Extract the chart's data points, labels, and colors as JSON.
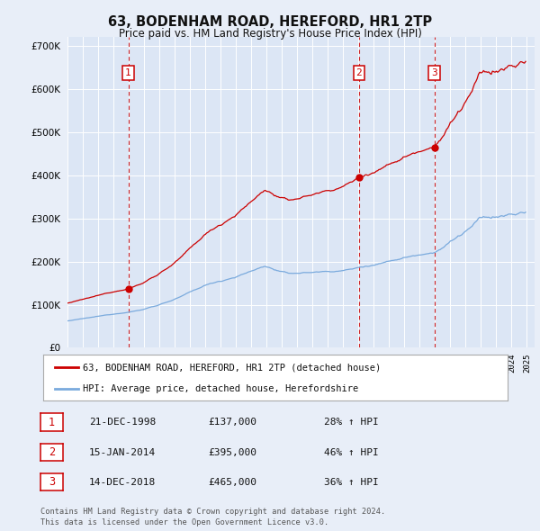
{
  "title": "63, BODENHAM ROAD, HEREFORD, HR1 2TP",
  "subtitle": "Price paid vs. HM Land Registry's House Price Index (HPI)",
  "background_color": "#e8eef8",
  "plot_bg_color": "#dce6f5",
  "grid_color": "#ffffff",
  "ylim": [
    0,
    720000
  ],
  "yticks": [
    0,
    100000,
    200000,
    300000,
    400000,
    500000,
    600000,
    700000
  ],
  "ytick_labels": [
    "£0",
    "£100K",
    "£200K",
    "£300K",
    "£400K",
    "£500K",
    "£600K",
    "£700K"
  ],
  "transactions": [
    {
      "date_num": 1998.97,
      "price": 137000,
      "label": "1"
    },
    {
      "date_num": 2014.04,
      "price": 395000,
      "label": "2"
    },
    {
      "date_num": 2018.95,
      "price": 465000,
      "label": "3"
    }
  ],
  "transaction_vlines": [
    1998.97,
    2014.04,
    2018.95
  ],
  "legend_property_label": "63, BODENHAM ROAD, HEREFORD, HR1 2TP (detached house)",
  "legend_hpi_label": "HPI: Average price, detached house, Herefordshire",
  "property_line_color": "#cc0000",
  "hpi_line_color": "#7aaadd",
  "footnote": "Contains HM Land Registry data © Crown copyright and database right 2024.\nThis data is licensed under the Open Government Licence v3.0.",
  "table_rows": [
    {
      "num": "1",
      "date": "21-DEC-1998",
      "price": "£137,000",
      "hpi": "28% ↑ HPI"
    },
    {
      "num": "2",
      "date": "15-JAN-2014",
      "price": "£395,000",
      "hpi": "46% ↑ HPI"
    },
    {
      "num": "3",
      "date": "14-DEC-2018",
      "price": "£465,000",
      "hpi": "36% ↑ HPI"
    }
  ]
}
